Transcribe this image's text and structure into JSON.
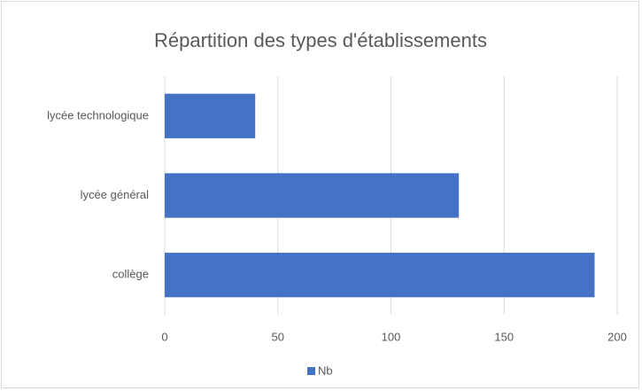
{
  "chart_data": {
    "type": "bar",
    "orientation": "horizontal",
    "title": "Répartition des types d'établissements",
    "categories": [
      "collège",
      "lycée général",
      "lycée technologique"
    ],
    "series": [
      {
        "name": "Nb",
        "color": "#4472c4",
        "values": [
          190,
          130,
          40
        ]
      }
    ],
    "xlim": [
      0,
      200
    ],
    "xticks": [
      0,
      50,
      100,
      150,
      200
    ],
    "grid": true,
    "legend": "bottom"
  }
}
